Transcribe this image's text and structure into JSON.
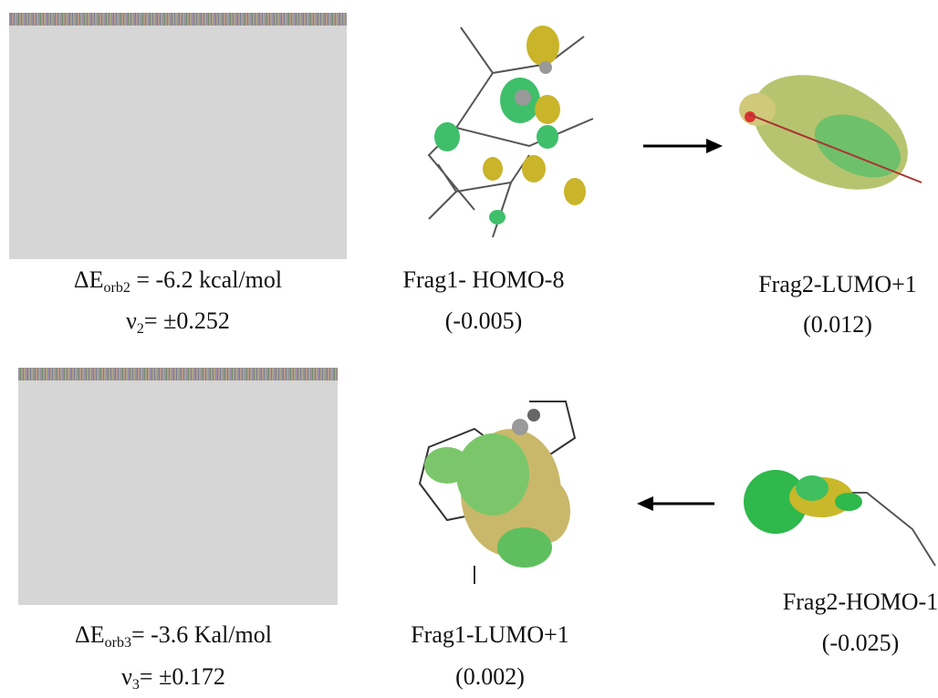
{
  "rows": [
    {
      "energy": {
        "symbol": "ΔE",
        "sub": "orb2",
        "rest": " = -6.2 kcal/mol"
      },
      "nu": {
        "symbol": "ν",
        "sub": "2",
        "rest": "= ±0.252"
      },
      "frag1": {
        "label": "Frag1- HOMO-8",
        "value": "(-0.005)"
      },
      "frag2": {
        "label": "Frag2-LUMO+1",
        "value": "(0.012)"
      }
    },
    {
      "energy": {
        "symbol": "ΔE",
        "sub": "orb3",
        "rest": "= -3.6 Kal/mol"
      },
      "nu": {
        "symbol": "ν",
        "sub": "3",
        "rest": "= ±0.172"
      },
      "frag1": {
        "label": "Frag1-LUMO+1",
        "value": "(0.002)"
      },
      "frag2": {
        "label": "Frag2-HOMO-1",
        "value": "(-0.025)"
      }
    }
  ]
}
